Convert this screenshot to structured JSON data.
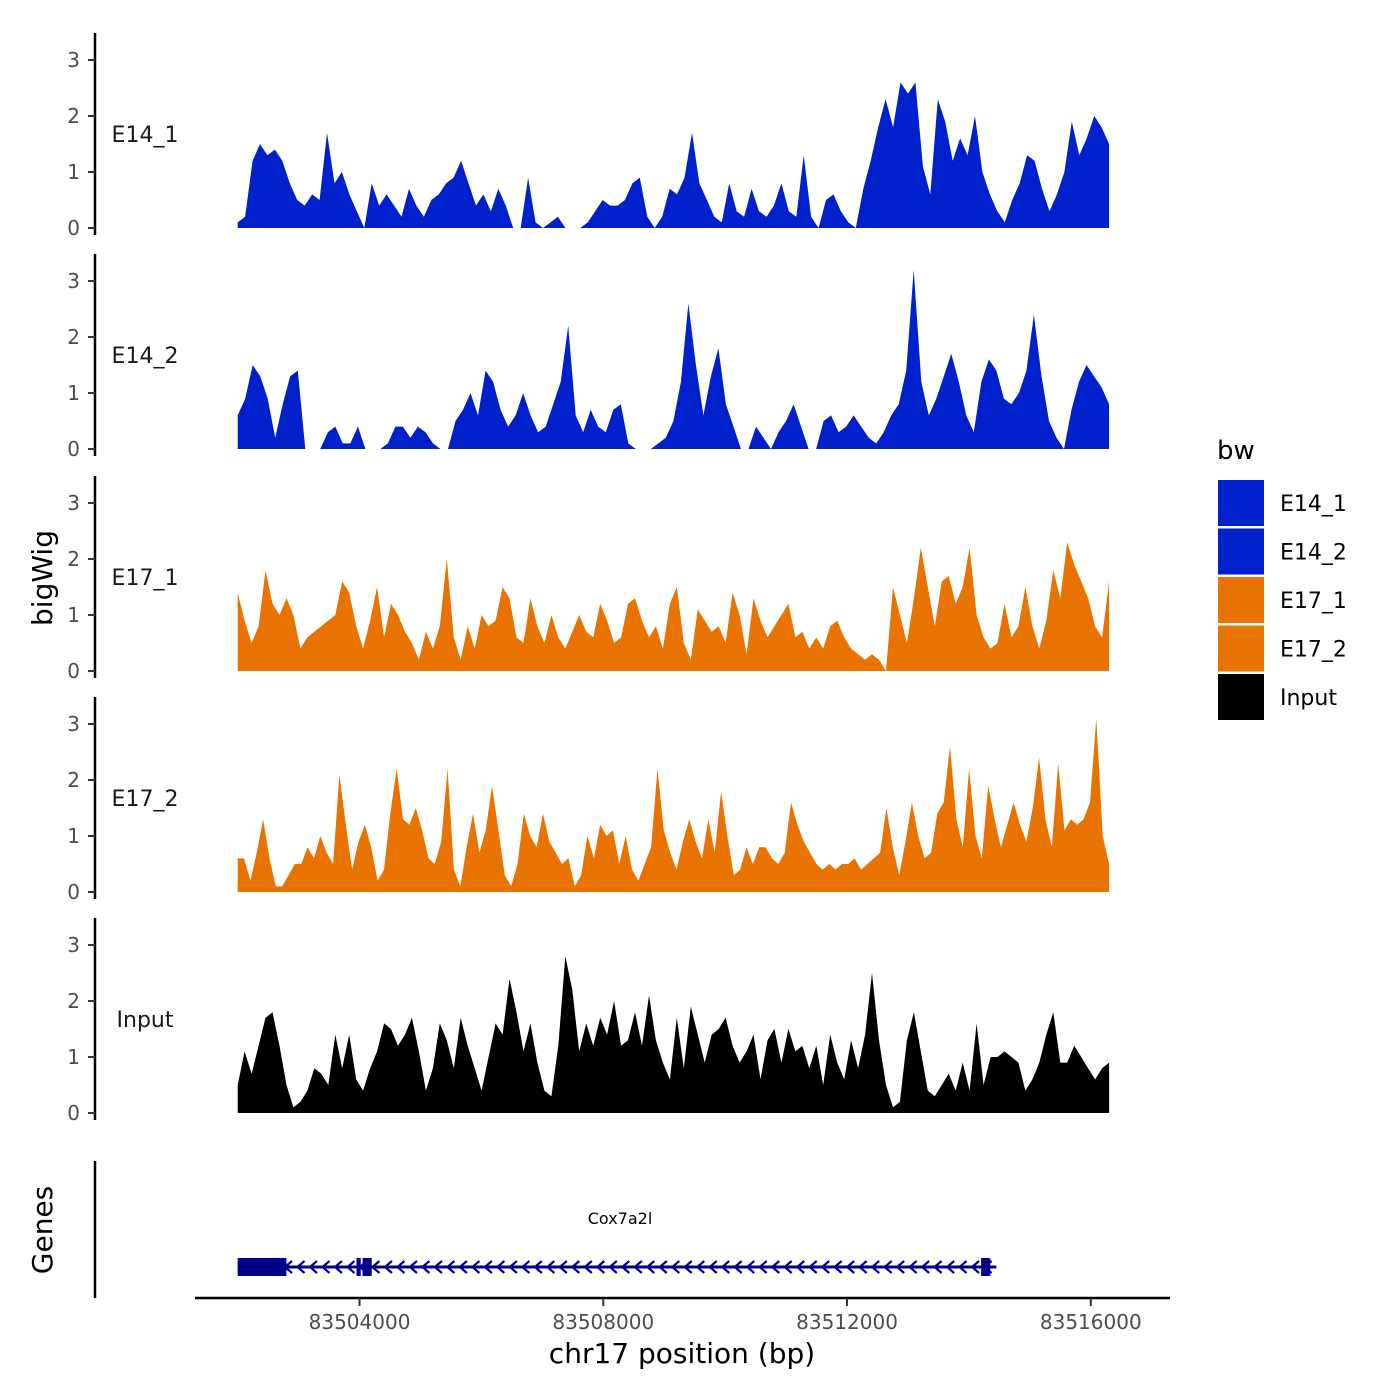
{
  "chart_data": {
    "type": "area",
    "chromosome": "chr17",
    "xlabel": "chr17 position (bp)",
    "ylabel": "bigWig",
    "xlim": [
      83501300,
      83517300
    ],
    "ylim": [
      0,
      3.5
    ],
    "x_ticks": [
      83504000,
      83508000,
      83512000,
      83516000
    ],
    "x_tick_labels": [
      "83504000",
      "83508000",
      "83512000",
      "83516000"
    ],
    "y_ticks": [
      0,
      1,
      2,
      3
    ],
    "y_tick_labels": [
      "0",
      "1",
      "2",
      "3"
    ],
    "data_x_range": [
      83502000,
      83516300
    ],
    "legend": {
      "title": "bw",
      "entries": [
        {
          "name": "E14_1",
          "color": "#0020CC"
        },
        {
          "name": "E14_2",
          "color": "#0020CC"
        },
        {
          "name": "E17_1",
          "color": "#E87300"
        },
        {
          "name": "E17_2",
          "color": "#E87300"
        },
        {
          "name": "Input",
          "color": "#000000"
        }
      ]
    },
    "series": [
      {
        "name": "E14_1",
        "color": "#0020CC",
        "values": [
          0.1,
          0.2,
          1.2,
          1.5,
          1.3,
          1.4,
          1.2,
          0.8,
          0.5,
          0.4,
          0.6,
          0.5,
          1.7,
          0.8,
          1.0,
          0.6,
          0.3,
          0,
          0.8,
          0.4,
          0.6,
          0.4,
          0.2,
          0.7,
          0.4,
          0.2,
          0.5,
          0.6,
          0.8,
          0.9,
          1.2,
          0.8,
          0.4,
          0.6,
          0.3,
          0.7,
          0.4,
          0,
          0,
          0.9,
          0.1,
          0,
          0.1,
          0.2,
          0,
          0,
          0,
          0.1,
          0.3,
          0.5,
          0.4,
          0.4,
          0.5,
          0.8,
          0.9,
          0.2,
          0,
          0.2,
          0.7,
          0.6,
          0.9,
          1.7,
          0.8,
          0.5,
          0.2,
          0.1,
          0.8,
          0.3,
          0.2,
          0.7,
          0.3,
          0.2,
          0.4,
          0.8,
          0.3,
          0.2,
          1.3,
          0.2,
          0,
          0.5,
          0.6,
          0.3,
          0.1,
          0,
          0.7,
          1.2,
          1.8,
          2.3,
          1.8,
          2.6,
          2.4,
          2.6,
          1.1,
          0.6,
          2.3,
          1.9,
          1.2,
          1.6,
          1.3,
          2.0,
          1.0,
          0.6,
          0.3,
          0.1,
          0.5,
          0.8,
          1.3,
          1.2,
          0.7,
          0.3,
          0.6,
          1.0,
          1.9,
          1.3,
          1.6,
          2.0,
          1.8,
          1.5
        ]
      },
      {
        "name": "E14_2",
        "color": "#0020CC",
        "values": [
          0.6,
          0.9,
          1.5,
          1.3,
          0.9,
          0.2,
          0.8,
          1.3,
          1.4,
          0,
          0,
          0,
          0.3,
          0.4,
          0.1,
          0.1,
          0.4,
          0,
          0,
          0,
          0.1,
          0.4,
          0.4,
          0.2,
          0.4,
          0.3,
          0.1,
          0,
          0,
          0.5,
          0.7,
          1.0,
          0.6,
          1.4,
          1.2,
          0.7,
          0.4,
          0.6,
          1.0,
          0.6,
          0.3,
          0.4,
          0.8,
          1.2,
          2.2,
          0.6,
          0.3,
          0.7,
          0.4,
          0.3,
          0.7,
          0.8,
          0.1,
          0,
          0,
          0,
          0.1,
          0.2,
          0.5,
          1.2,
          2.6,
          1.5,
          0.6,
          1.3,
          1.8,
          0.8,
          0.4,
          0,
          0,
          0.4,
          0.2,
          0,
          0.3,
          0.5,
          0.8,
          0.4,
          0,
          0,
          0.5,
          0.6,
          0.3,
          0.4,
          0.6,
          0.4,
          0.2,
          0.1,
          0.3,
          0.6,
          0.8,
          1.4,
          3.2,
          1.2,
          0.6,
          0.9,
          1.3,
          1.7,
          1.2,
          0.6,
          0.3,
          1.2,
          1.6,
          1.4,
          0.9,
          0.8,
          1.0,
          1.4,
          2.4,
          1.3,
          0.5,
          0.2,
          0,
          0.7,
          1.2,
          1.5,
          1.3,
          1.1,
          0.8
        ]
      },
      {
        "name": "E17_1",
        "color": "#E87300",
        "values": [
          1.4,
          0.9,
          0.5,
          0.8,
          1.8,
          1.2,
          1.0,
          1.3,
          1.0,
          0.4,
          0.6,
          0.7,
          0.8,
          0.9,
          1.0,
          1.6,
          1.4,
          0.8,
          0.4,
          0.9,
          1.5,
          0.6,
          1.2,
          1.0,
          0.7,
          0.5,
          0.2,
          0.7,
          0.4,
          0.8,
          2.0,
          0.6,
          0.2,
          0.8,
          0.4,
          1.0,
          0.8,
          0.9,
          1.5,
          1.3,
          0.6,
          0.5,
          1.3,
          0.8,
          0.5,
          1.0,
          0.6,
          0.4,
          0.7,
          1.0,
          0.7,
          0.6,
          1.2,
          0.9,
          0.5,
          0.6,
          1.2,
          1.3,
          0.9,
          0.6,
          0.8,
          0.4,
          1.2,
          1.5,
          0.5,
          0.2,
          1.1,
          0.9,
          0.7,
          0.8,
          0.5,
          1.4,
          1.0,
          0.3,
          1.3,
          0.9,
          0.6,
          0.8,
          1.0,
          1.2,
          0.6,
          0.7,
          0.4,
          0.6,
          0.4,
          0.8,
          0.9,
          0.6,
          0.4,
          0.3,
          0.2,
          0.3,
          0.2,
          0,
          1.5,
          1.0,
          0.5,
          1.3,
          2.2,
          1.5,
          0.8,
          1.6,
          1.7,
          1.2,
          1.5,
          2.2,
          1.0,
          0.6,
          0.4,
          0.5,
          1.2,
          0.6,
          0.8,
          1.5,
          0.8,
          0.4,
          0.9,
          1.8,
          1.3,
          2.3,
          1.9,
          1.6,
          1.3,
          0.8,
          0.6,
          1.6
        ]
      },
      {
        "name": "E17_2",
        "color": "#E87300",
        "values": [
          0.6,
          0.6,
          0.2,
          0.7,
          1.3,
          0.6,
          0.1,
          0.1,
          0.3,
          0.5,
          0.5,
          0.8,
          0.6,
          1.0,
          0.7,
          0.5,
          2.1,
          1.2,
          0.4,
          0.9,
          1.2,
          0.8,
          0.2,
          0.4,
          1.4,
          2.2,
          1.3,
          1.2,
          1.5,
          1.1,
          0.6,
          0.5,
          0.9,
          2.2,
          0.4,
          0.1,
          0.8,
          1.4,
          0.7,
          1.1,
          1.9,
          1.1,
          0.3,
          0.1,
          0.5,
          1.4,
          1.0,
          0.8,
          1.4,
          0.9,
          0.7,
          0.5,
          0.6,
          0.1,
          0.3,
          1.0,
          0.6,
          1.2,
          1.0,
          1.1,
          0.5,
          1.0,
          0.4,
          0.2,
          0.5,
          0.8,
          2.2,
          1.1,
          0.7,
          0.4,
          0.9,
          1.3,
          0.9,
          0.6,
          1.3,
          0.7,
          1.8,
          1.0,
          0.3,
          0.4,
          0.8,
          0.5,
          0.8,
          0.8,
          0.6,
          0.5,
          0.7,
          1.6,
          1.2,
          0.9,
          0.7,
          0.5,
          0.4,
          0.5,
          0.4,
          0.5,
          0.5,
          0.6,
          0.4,
          0.5,
          0.6,
          0.7,
          1.5,
          0.8,
          0.3,
          0.9,
          1.6,
          1.0,
          0.6,
          0.7,
          1.4,
          1.6,
          2.6,
          1.3,
          0.8,
          2.2,
          1.0,
          0.6,
          1.9,
          1.3,
          0.8,
          1.2,
          1.6,
          1.2,
          0.9,
          1.5,
          2.4,
          1.3,
          0.8,
          2.3,
          1.1,
          1.3,
          1.2,
          1.3,
          1.6,
          3.1,
          1.0,
          0.5
        ]
      },
      {
        "name": "Input",
        "color": "#000000",
        "values": [
          0.5,
          1.1,
          0.7,
          1.2,
          1.7,
          1.8,
          1.2,
          0.5,
          0.1,
          0.2,
          0.4,
          0.8,
          0.7,
          0.5,
          1.4,
          0.8,
          1.4,
          0.6,
          0.4,
          0.8,
          1.1,
          1.6,
          1.5,
          1.2,
          1.4,
          1.7,
          1.1,
          0.4,
          0.8,
          1.6,
          1.3,
          0.8,
          1.7,
          1.2,
          0.8,
          0.4,
          1.0,
          1.6,
          1.4,
          2.4,
          1.8,
          1.1,
          1.6,
          0.9,
          0.4,
          0.3,
          1.2,
          2.8,
          2.2,
          1.1,
          1.6,
          1.2,
          1.7,
          1.4,
          2.0,
          1.2,
          1.3,
          1.8,
          1.2,
          2.1,
          1.3,
          0.9,
          0.6,
          1.7,
          0.8,
          1.9,
          1.4,
          0.9,
          1.4,
          1.5,
          1.7,
          1.2,
          0.9,
          1.1,
          1.4,
          0.6,
          1.3,
          1.5,
          0.9,
          1.5,
          1.1,
          1.2,
          0.8,
          1.2,
          0.5,
          1.4,
          0.9,
          0.6,
          1.3,
          0.8,
          1.4,
          2.5,
          1.3,
          0.5,
          0.1,
          0.2,
          1.3,
          1.8,
          1.1,
          0.4,
          0.3,
          0.5,
          0.7,
          0.4,
          0.9,
          0.4,
          1.6,
          0.5,
          1.0,
          1.0,
          1.1,
          1.0,
          0.9,
          0.4,
          0.6,
          0.9,
          1.4,
          1.8,
          0.9,
          0.9,
          1.2,
          1.0,
          0.8,
          0.6,
          0.8,
          0.9
        ]
      }
    ],
    "genes_track": {
      "title": "Genes",
      "gene_name": "Cox7a2l",
      "color": "#00008B",
      "strand": "-",
      "start": 83502000,
      "end": 83514450,
      "exons": [
        [
          83502000,
          83502800
        ],
        [
          83503950,
          83504020
        ],
        [
          83504050,
          83504200
        ],
        [
          83514200,
          83514350
        ]
      ]
    }
  }
}
